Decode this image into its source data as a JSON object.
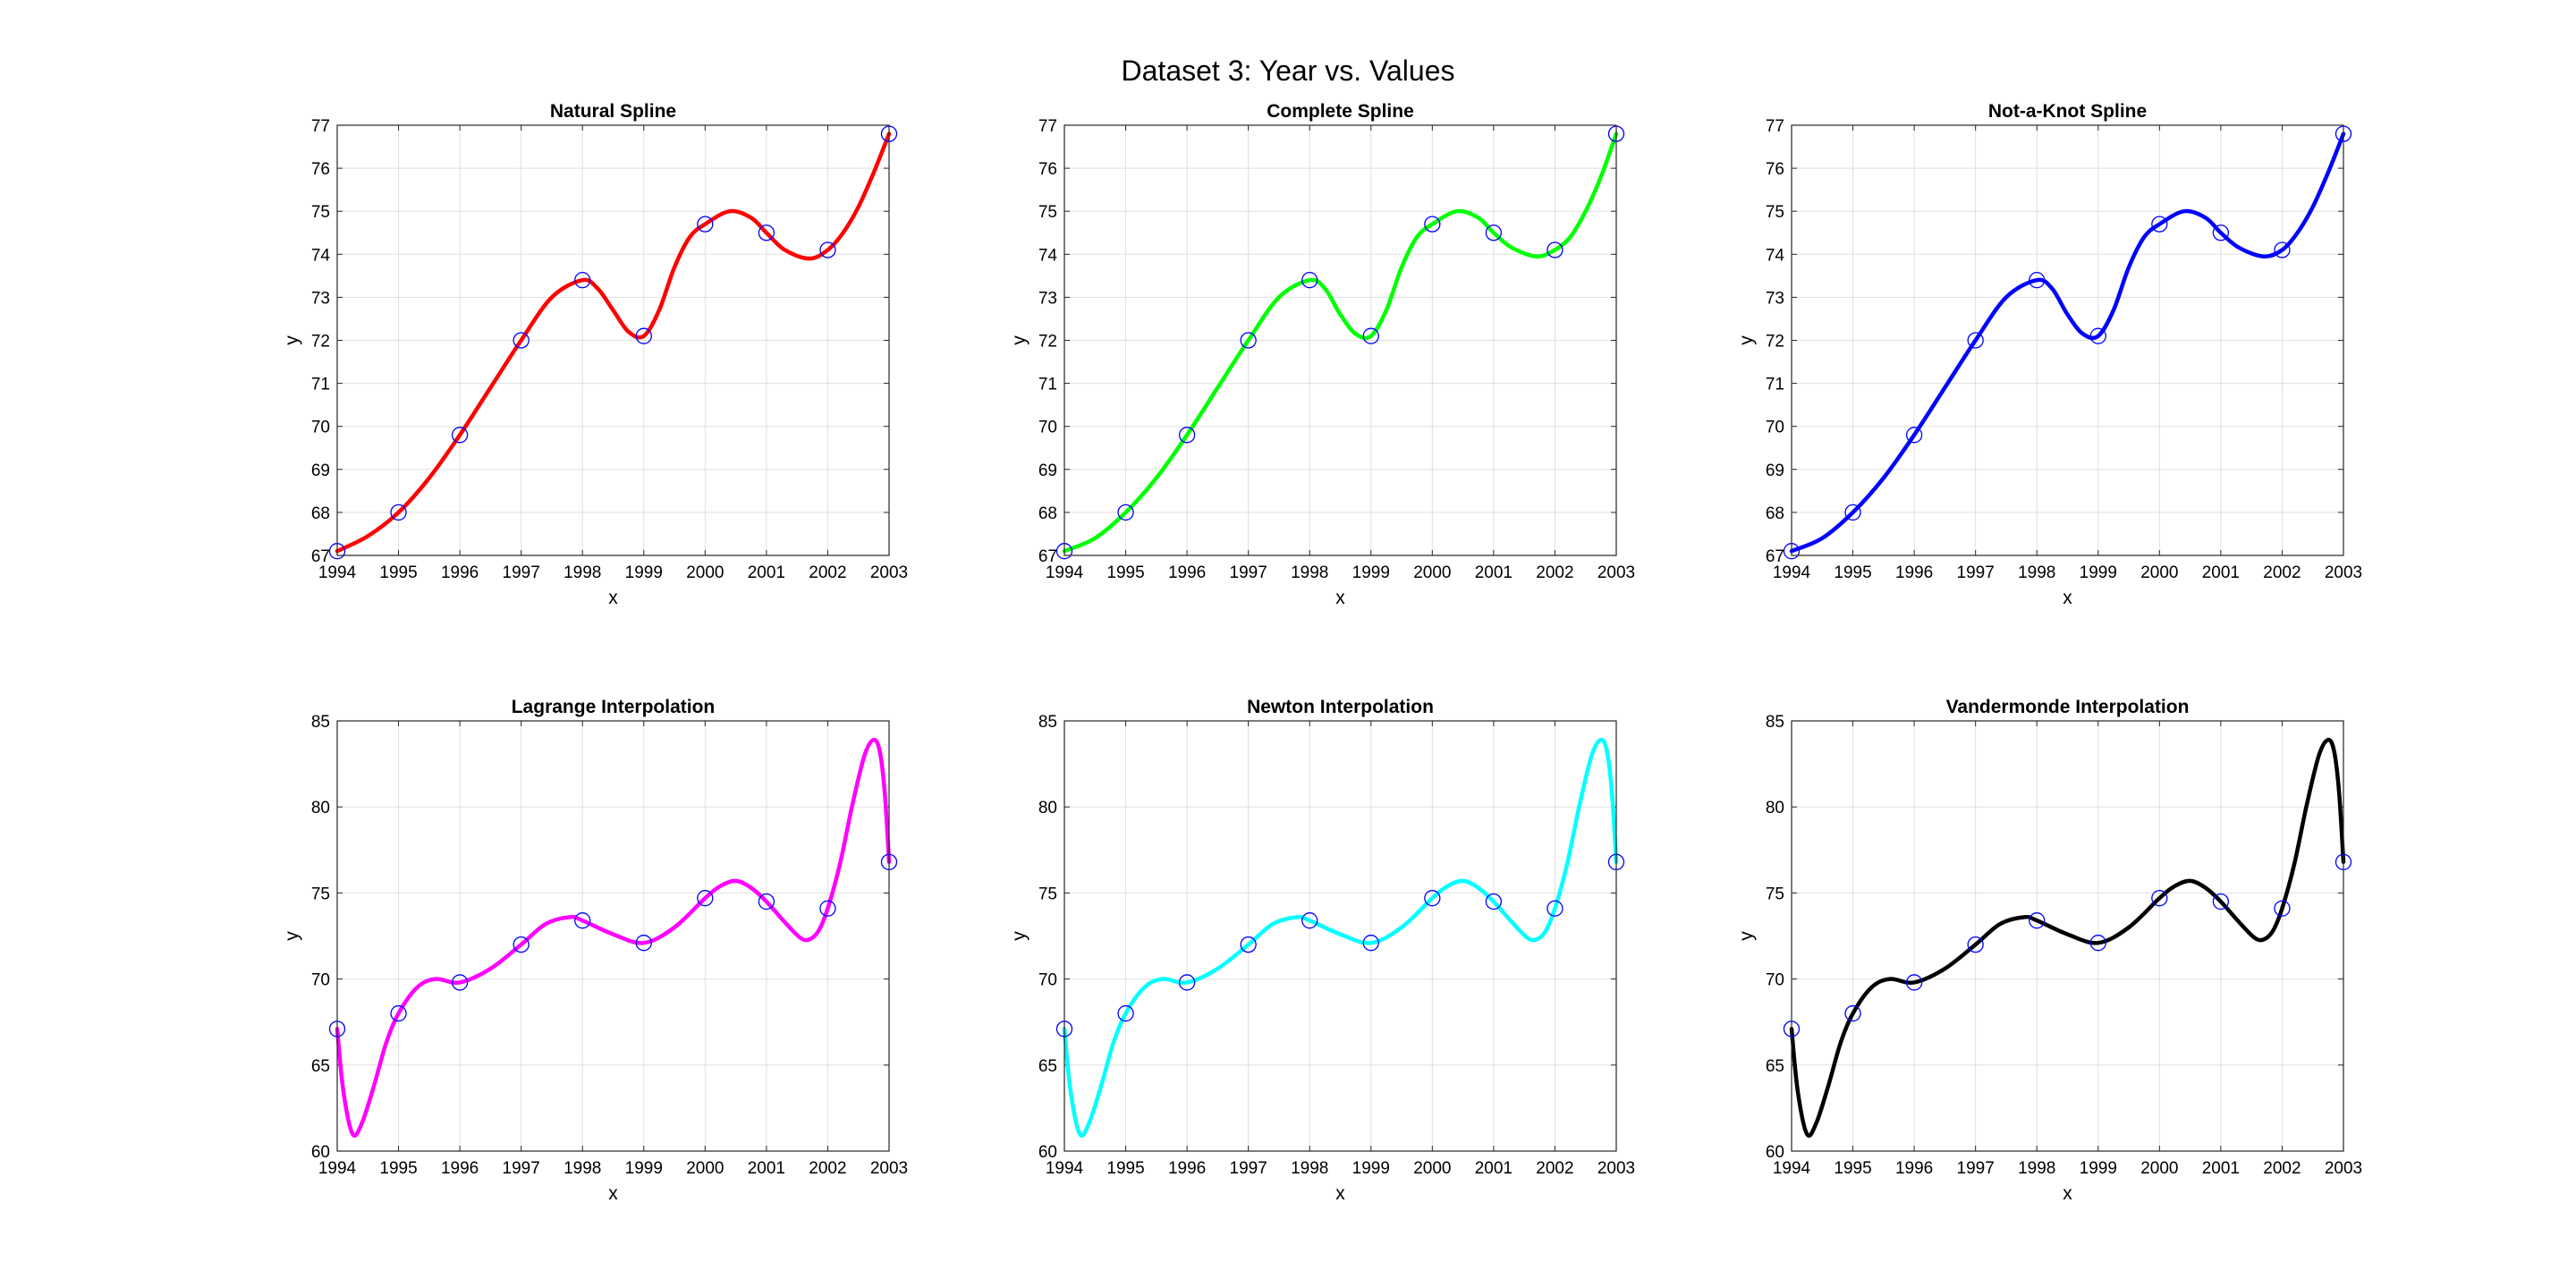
{
  "figure": {
    "title": "Dataset 3: Year vs. Values"
  },
  "chart_data": [
    {
      "type": "line",
      "title": "Natural Spline",
      "xlabel": "x",
      "ylabel": "y",
      "xlim": [
        1994,
        2003
      ],
      "ylim": [
        67,
        77
      ],
      "xticks": [
        1994,
        1995,
        1996,
        1997,
        1998,
        1999,
        2000,
        2001,
        2002,
        2003
      ],
      "yticks": [
        67,
        68,
        69,
        70,
        71,
        72,
        73,
        74,
        75,
        76,
        77
      ],
      "grid": true,
      "color": "#ff0000",
      "points": {
        "x": [
          1994,
          1995,
          1996,
          1997,
          1998,
          1999,
          2000,
          2001,
          2002,
          2003
        ],
        "y": [
          67.1,
          68.0,
          69.8,
          72.0,
          73.4,
          72.1,
          74.7,
          74.5,
          74.1,
          76.8
        ]
      },
      "curve": {
        "x": [
          1994,
          1994.5,
          1995,
          1995.5,
          1996,
          1996.5,
          1997,
          1997.5,
          1998,
          1998.25,
          1998.5,
          1998.75,
          1999,
          1999.25,
          1999.5,
          1999.75,
          2000,
          2000.4,
          2000.75,
          2001,
          2001.3,
          2001.7,
          2002,
          2002.25,
          2002.5,
          2002.75,
          2003
        ],
        "y": [
          67.1,
          67.45,
          68.0,
          68.8,
          69.8,
          70.9,
          72.0,
          73.0,
          73.4,
          73.2,
          72.7,
          72.2,
          72.1,
          72.7,
          73.7,
          74.4,
          74.7,
          75.0,
          74.85,
          74.5,
          74.1,
          73.9,
          74.1,
          74.5,
          75.1,
          75.9,
          76.8
        ]
      }
    },
    {
      "type": "line",
      "title": "Complete Spline",
      "xlabel": "x",
      "ylabel": "y",
      "xlim": [
        1994,
        2003
      ],
      "ylim": [
        67,
        77
      ],
      "xticks": [
        1994,
        1995,
        1996,
        1997,
        1998,
        1999,
        2000,
        2001,
        2002,
        2003
      ],
      "yticks": [
        67,
        68,
        69,
        70,
        71,
        72,
        73,
        74,
        75,
        76,
        77
      ],
      "grid": true,
      "color": "#00ff00",
      "points": {
        "x": [
          1994,
          1995,
          1996,
          1997,
          1998,
          1999,
          2000,
          2001,
          2002,
          2003
        ],
        "y": [
          67.1,
          68.0,
          69.8,
          72.0,
          73.4,
          72.1,
          74.7,
          74.5,
          74.1,
          76.8
        ]
      },
      "curve": {
        "x": [
          1994,
          1994.5,
          1995,
          1995.5,
          1996,
          1996.5,
          1997,
          1997.5,
          1998,
          1998.25,
          1998.5,
          1998.75,
          1999,
          1999.25,
          1999.5,
          1999.75,
          2000,
          2000.4,
          2000.75,
          2001,
          2001.3,
          2001.7,
          2002,
          2002.25,
          2002.5,
          2002.75,
          2003
        ],
        "y": [
          67.1,
          67.4,
          68.0,
          68.8,
          69.8,
          70.9,
          72.0,
          73.0,
          73.4,
          73.2,
          72.6,
          72.15,
          72.1,
          72.7,
          73.7,
          74.4,
          74.7,
          75.0,
          74.85,
          74.5,
          74.15,
          73.95,
          74.1,
          74.4,
          75.0,
          75.8,
          76.8
        ]
      }
    },
    {
      "type": "line",
      "title": "Not-a-Knot Spline",
      "xlabel": "x",
      "ylabel": "y",
      "xlim": [
        1994,
        2003
      ],
      "ylim": [
        67,
        77
      ],
      "xticks": [
        1994,
        1995,
        1996,
        1997,
        1998,
        1999,
        2000,
        2001,
        2002,
        2003
      ],
      "yticks": [
        67,
        68,
        69,
        70,
        71,
        72,
        73,
        74,
        75,
        76,
        77
      ],
      "grid": true,
      "color": "#0000ff",
      "points": {
        "x": [
          1994,
          1995,
          1996,
          1997,
          1998,
          1999,
          2000,
          2001,
          2002,
          2003
        ],
        "y": [
          67.1,
          68.0,
          69.8,
          72.0,
          73.4,
          72.1,
          74.7,
          74.5,
          74.1,
          76.8
        ]
      },
      "curve": {
        "x": [
          1994,
          1994.5,
          1995,
          1995.5,
          1996,
          1996.5,
          1997,
          1997.5,
          1998,
          1998.25,
          1998.5,
          1998.75,
          1999,
          1999.25,
          1999.5,
          1999.75,
          2000,
          2000.4,
          2000.75,
          2001,
          2001.3,
          2001.7,
          2002,
          2002.25,
          2002.5,
          2002.75,
          2003
        ],
        "y": [
          67.1,
          67.4,
          68.0,
          68.8,
          69.8,
          70.9,
          72.0,
          73.0,
          73.4,
          73.2,
          72.6,
          72.15,
          72.1,
          72.7,
          73.7,
          74.4,
          74.7,
          75.0,
          74.85,
          74.5,
          74.15,
          73.95,
          74.1,
          74.5,
          75.1,
          75.9,
          76.8
        ]
      }
    },
    {
      "type": "line",
      "title": "Lagrange Interpolation",
      "xlabel": "x",
      "ylabel": "y",
      "xlim": [
        1994,
        2003
      ],
      "ylim": [
        60,
        85
      ],
      "xticks": [
        1994,
        1995,
        1996,
        1997,
        1998,
        1999,
        2000,
        2001,
        2002,
        2003
      ],
      "yticks": [
        60,
        65,
        70,
        75,
        80,
        85
      ],
      "grid": true,
      "color": "#ff00ff",
      "points": {
        "x": [
          1994,
          1995,
          1996,
          1997,
          1998,
          1999,
          2000,
          2001,
          2002,
          2003
        ],
        "y": [
          67.1,
          68.0,
          69.8,
          72.0,
          73.4,
          72.1,
          74.7,
          74.5,
          74.1,
          76.8
        ]
      },
      "curve": {
        "x": [
          1994,
          1994.1,
          1994.25,
          1994.4,
          1994.6,
          1994.8,
          1995,
          1995.3,
          1995.6,
          1996,
          1996.5,
          1997,
          1997.4,
          1997.8,
          1998,
          1998.5,
          1999,
          1999.5,
          2000,
          2000.25,
          2000.5,
          2000.75,
          2001,
          2001.3,
          2001.55,
          2001.7,
          2001.85,
          2002,
          2002.2,
          2002.4,
          2002.6,
          2002.75,
          2002.85,
          2002.93,
          2003
        ],
        "y": [
          67.1,
          63.5,
          61.0,
          61.6,
          63.8,
          66.3,
          68.0,
          69.5,
          70.0,
          69.8,
          70.6,
          72.0,
          73.2,
          73.6,
          73.4,
          72.6,
          72.1,
          73.0,
          74.7,
          75.4,
          75.7,
          75.3,
          74.5,
          73.3,
          72.4,
          72.3,
          72.8,
          74.1,
          76.7,
          80.1,
          83.0,
          83.9,
          83.2,
          80.8,
          76.8
        ]
      }
    },
    {
      "type": "line",
      "title": "Newton Interpolation",
      "xlabel": "x",
      "ylabel": "y",
      "xlim": [
        1994,
        2003
      ],
      "ylim": [
        60,
        85
      ],
      "xticks": [
        1994,
        1995,
        1996,
        1997,
        1998,
        1999,
        2000,
        2001,
        2002,
        2003
      ],
      "yticks": [
        60,
        65,
        70,
        75,
        80,
        85
      ],
      "grid": true,
      "color": "#00ffff",
      "points": {
        "x": [
          1994,
          1995,
          1996,
          1997,
          1998,
          1999,
          2000,
          2001,
          2002,
          2003
        ],
        "y": [
          67.1,
          68.0,
          69.8,
          72.0,
          73.4,
          72.1,
          74.7,
          74.5,
          74.1,
          76.8
        ]
      },
      "curve": {
        "x": [
          1994,
          1994.1,
          1994.25,
          1994.4,
          1994.6,
          1994.8,
          1995,
          1995.3,
          1995.6,
          1996,
          1996.5,
          1997,
          1997.4,
          1997.8,
          1998,
          1998.5,
          1999,
          1999.5,
          2000,
          2000.25,
          2000.5,
          2000.75,
          2001,
          2001.3,
          2001.55,
          2001.7,
          2001.85,
          2002,
          2002.2,
          2002.4,
          2002.6,
          2002.75,
          2002.85,
          2002.93,
          2003
        ],
        "y": [
          67.1,
          63.5,
          61.0,
          61.6,
          63.8,
          66.3,
          68.0,
          69.5,
          70.0,
          69.8,
          70.6,
          72.0,
          73.2,
          73.6,
          73.4,
          72.6,
          72.1,
          73.0,
          74.7,
          75.4,
          75.7,
          75.3,
          74.5,
          73.3,
          72.4,
          72.3,
          72.8,
          74.1,
          76.7,
          80.1,
          83.0,
          83.9,
          83.2,
          80.8,
          76.8
        ]
      }
    },
    {
      "type": "line",
      "title": "Vandermonde Interpolation",
      "xlabel": "x",
      "ylabel": "y",
      "xlim": [
        1994,
        2003
      ],
      "ylim": [
        60,
        85
      ],
      "xticks": [
        1994,
        1995,
        1996,
        1997,
        1998,
        1999,
        2000,
        2001,
        2002,
        2003
      ],
      "yticks": [
        60,
        65,
        70,
        75,
        80,
        85
      ],
      "grid": true,
      "color": "#000000",
      "points": {
        "x": [
          1994,
          1995,
          1996,
          1997,
          1998,
          1999,
          2000,
          2001,
          2002,
          2003
        ],
        "y": [
          67.1,
          68.0,
          69.8,
          72.0,
          73.4,
          72.1,
          74.7,
          74.5,
          74.1,
          76.8
        ]
      },
      "curve": {
        "x": [
          1994,
          1994.1,
          1994.25,
          1994.4,
          1994.6,
          1994.8,
          1995,
          1995.3,
          1995.6,
          1996,
          1996.5,
          1997,
          1997.4,
          1997.8,
          1998,
          1998.5,
          1999,
          1999.5,
          2000,
          2000.25,
          2000.5,
          2000.75,
          2001,
          2001.3,
          2001.55,
          2001.7,
          2001.85,
          2002,
          2002.2,
          2002.4,
          2002.6,
          2002.75,
          2002.85,
          2002.93,
          2003
        ],
        "y": [
          67.1,
          63.5,
          61.0,
          61.6,
          63.8,
          66.3,
          68.0,
          69.5,
          70.0,
          69.8,
          70.6,
          72.0,
          73.2,
          73.6,
          73.4,
          72.6,
          72.1,
          73.0,
          74.7,
          75.4,
          75.7,
          75.3,
          74.5,
          73.3,
          72.4,
          72.3,
          72.8,
          74.1,
          76.7,
          80.1,
          83.0,
          83.9,
          83.2,
          80.8,
          76.8
        ]
      }
    }
  ]
}
